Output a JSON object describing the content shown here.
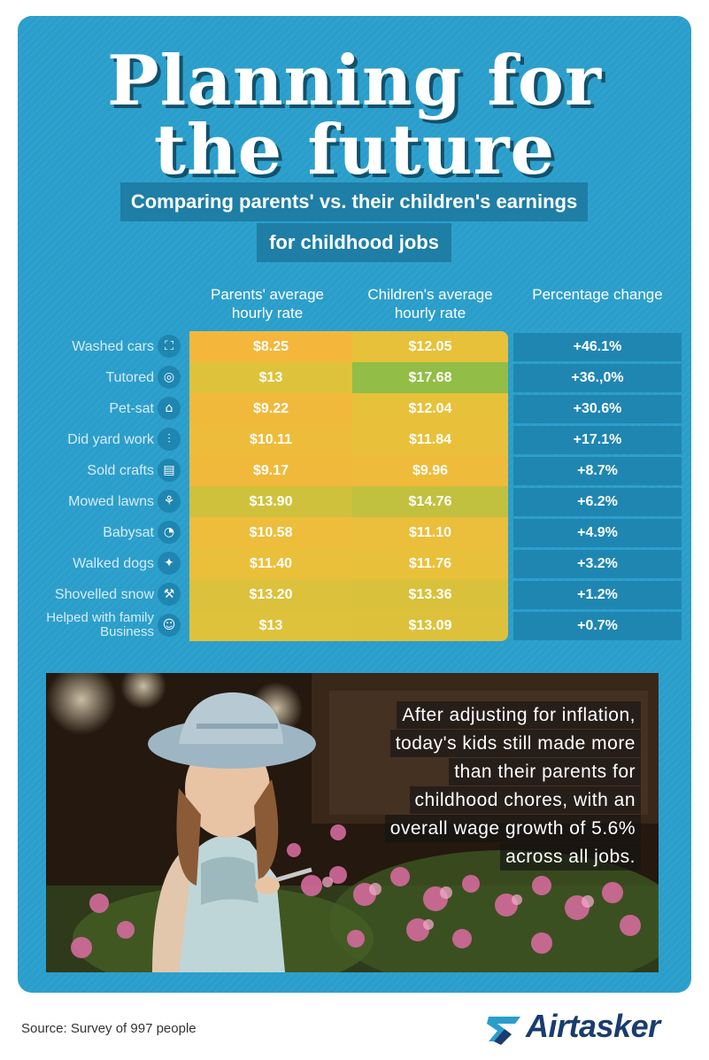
{
  "title_line1": "Planning for",
  "title_line2": "the future",
  "subtitle_line1": "Comparing parents' vs. their children's earnings",
  "subtitle_line2": "for childhood jobs",
  "chart_data": {
    "type": "table",
    "columns": [
      "Parents' average hourly rate",
      "Children's average hourly rate",
      "Percentage change"
    ],
    "rows": [
      {
        "job": "Washed cars",
        "icon": "bucket-icon",
        "parents": "$8.25",
        "children": "$12.05",
        "change": "+46.1%",
        "parents_value": 8.25,
        "children_value": 12.05
      },
      {
        "job": "Tutored",
        "icon": "globe-icon",
        "parents": "$13",
        "children": "$17.68",
        "change": "+36.,0%",
        "parents_value": 13,
        "children_value": 17.68
      },
      {
        "job": "Pet-sat",
        "icon": "pet-icon",
        "parents": "$9.22",
        "children": "$12.04",
        "change": "+30.6%",
        "parents_value": 9.22,
        "children_value": 12.04
      },
      {
        "job": "Did yard work",
        "icon": "rake-icon",
        "parents": "$10.11",
        "children": "$11.84",
        "change": "+17.1%",
        "parents_value": 10.11,
        "children_value": 11.84
      },
      {
        "job": "Sold crafts",
        "icon": "stall-icon",
        "parents": "$9.17",
        "children": "$9.96",
        "change": "+8.7%",
        "parents_value": 9.17,
        "children_value": 9.96
      },
      {
        "job": "Mowed lawns",
        "icon": "lawnmower-icon",
        "parents": "$13.90",
        "children": "$14.76",
        "change": "+6.2%",
        "parents_value": 13.9,
        "children_value": 14.76
      },
      {
        "job": "Babysat",
        "icon": "stroller-icon",
        "parents": "$10.58",
        "children": "$11.10",
        "change": "+4.9%",
        "parents_value": 10.58,
        "children_value": 11.1
      },
      {
        "job": "Walked dogs",
        "icon": "dog-icon",
        "parents": "$11.40",
        "children": "$11.76",
        "change": "+3.2%",
        "parents_value": 11.4,
        "children_value": 11.76
      },
      {
        "job": "Shovelled snow",
        "icon": "shovel-icon",
        "parents": "$13.20",
        "children": "$13.36",
        "change": "+1.2%",
        "parents_value": 13.2,
        "children_value": 13.36
      },
      {
        "job": "Helped with family Business",
        "icon": "family-icon",
        "parents": "$13",
        "children": "$13.09",
        "change": "+0.7%",
        "parents_value": 13,
        "children_value": 13.09
      }
    ],
    "color_scale": {
      "low": "#f5b63c",
      "mid": "#e7c23a",
      "high": "#8dbd47"
    }
  },
  "caption_lines": [
    "After adjusting for inflation,",
    "today's kids still made more",
    "than their parents for",
    "childhood chores, with an",
    "overall wage growth of 5.6%",
    "across all jobs."
  ],
  "source": "Source: Survey of 997 people",
  "logo_text": "Airtasker",
  "colors": {
    "background": "#2a9ecb",
    "dark_band": "#1e7ea6",
    "title_shadow": "#13506a"
  }
}
